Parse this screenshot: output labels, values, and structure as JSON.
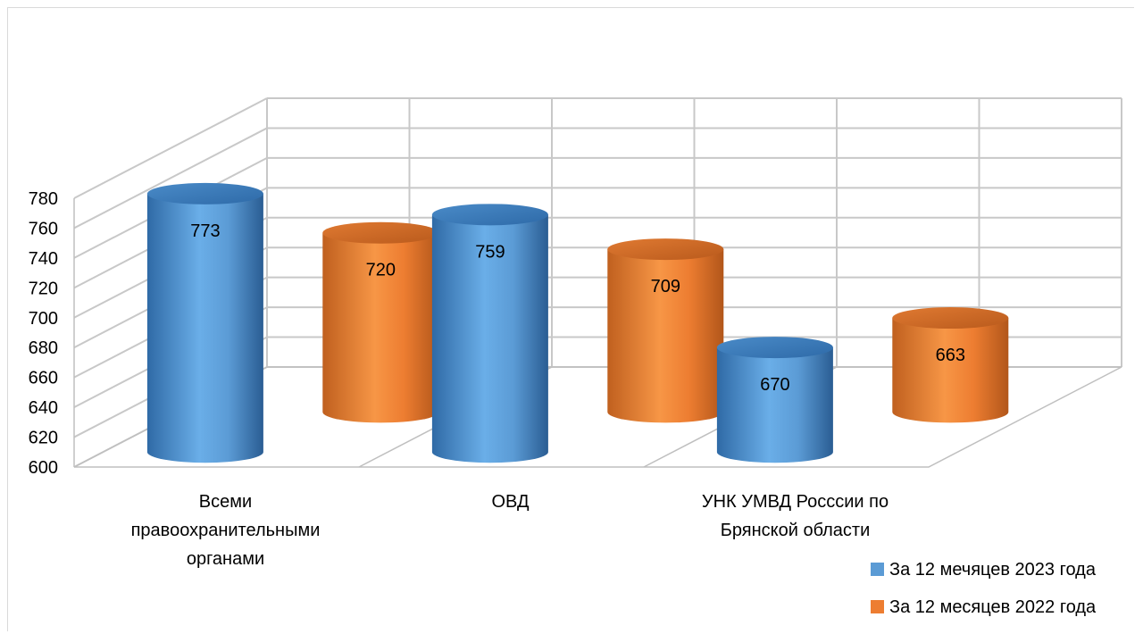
{
  "chart_data": {
    "type": "bar",
    "style": "3d-cylinder",
    "categories": [
      [
        "Всеми",
        "правоохранительными",
        "органами"
      ],
      [
        "ОВД"
      ],
      [
        "УНК УМВД Росссии по",
        "Брянской области"
      ]
    ],
    "series": [
      {
        "name": "За 12 мечяцев 2023 года",
        "values": [
          773,
          759,
          670
        ],
        "color": "#5b9bd5"
      },
      {
        "name": "За 12 месяцев 2022 года",
        "values": [
          720,
          709,
          663
        ],
        "color": "#ed7d31"
      }
    ],
    "ylim": [
      600,
      780
    ],
    "yticks": [
      "600",
      "620",
      "640",
      "660",
      "680",
      "700",
      "720",
      "740",
      "760",
      "780"
    ],
    "grid": true,
    "legend": "bottom-right",
    "data_labels": true
  }
}
